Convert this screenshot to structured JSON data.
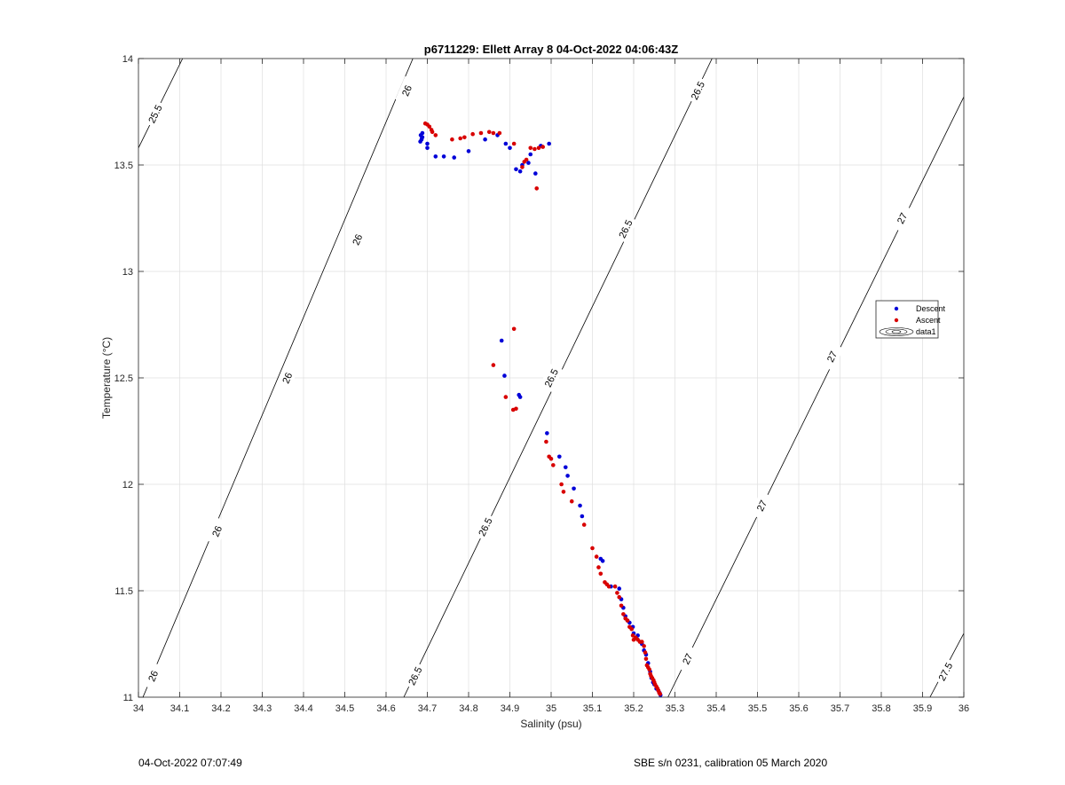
{
  "chart_data": {
    "type": "scatter",
    "title": "p6711229: Ellett Array 8 04-Oct-2022 04:06:43Z",
    "xlabel": "Salinity (psu)",
    "ylabel": "Temperature (°C)",
    "xlim": [
      34,
      36
    ],
    "ylim": [
      11,
      14
    ],
    "xticks": [
      "34",
      "34.1",
      "34.2",
      "34.3",
      "34.4",
      "34.5",
      "34.6",
      "34.7",
      "34.8",
      "34.9",
      "35",
      "35.1",
      "35.2",
      "35.3",
      "35.4",
      "35.5",
      "35.6",
      "35.7",
      "35.8",
      "35.9",
      "36"
    ],
    "yticks": [
      "11",
      "11.5",
      "12",
      "12.5",
      "13",
      "13.5",
      "14"
    ],
    "grid": true,
    "legend_position": "right",
    "legend": [
      "Descent",
      "Ascent",
      "data1"
    ],
    "contours": [
      {
        "level": "25.5",
        "points": [
          [
            34.0,
            13.58
          ],
          [
            34.107,
            14.0
          ]
        ],
        "labels": [
          [
            34.04,
            13.74
          ]
        ]
      },
      {
        "level": "26",
        "points": [
          [
            34.0,
            10.95
          ],
          [
            34.665,
            14.0
          ]
        ],
        "labels": [
          [
            34.035,
            11.1
          ],
          [
            34.19,
            11.78
          ],
          [
            34.36,
            12.5
          ],
          [
            34.53,
            13.15
          ],
          [
            34.65,
            13.85
          ]
        ]
      },
      {
        "level": "26.5",
        "points": [
          [
            34.643,
            11.0
          ],
          [
            35.39,
            14.0
          ]
        ],
        "labels": [
          [
            34.67,
            11.1
          ],
          [
            34.84,
            11.8
          ],
          [
            35.0,
            12.5
          ],
          [
            35.18,
            13.2
          ],
          [
            35.355,
            13.85
          ]
        ]
      },
      {
        "level": "27",
        "points": [
          [
            35.283,
            11.0
          ],
          [
            36.0,
            13.82
          ]
        ],
        "labels": [
          [
            35.33,
            11.18
          ],
          [
            35.51,
            11.9
          ],
          [
            35.68,
            12.6
          ],
          [
            35.85,
            13.25
          ]
        ]
      },
      {
        "level": "27.5",
        "points": [
          [
            35.918,
            11.0
          ],
          [
            36.0,
            11.3
          ]
        ],
        "labels": [
          [
            35.955,
            11.12
          ]
        ]
      }
    ],
    "series": [
      {
        "name": "Descent",
        "color": "#0000d8",
        "points": [
          [
            34.684,
            13.64
          ],
          [
            34.686,
            13.62
          ],
          [
            34.688,
            13.65
          ],
          [
            34.687,
            13.63
          ],
          [
            34.683,
            13.61
          ],
          [
            34.688,
            13.63
          ],
          [
            34.7,
            13.6
          ],
          [
            34.7,
            13.58
          ],
          [
            34.72,
            13.54
          ],
          [
            34.74,
            13.54
          ],
          [
            34.765,
            13.535
          ],
          [
            34.8,
            13.565
          ],
          [
            34.84,
            13.62
          ],
          [
            34.87,
            13.64
          ],
          [
            34.89,
            13.6
          ],
          [
            34.9,
            13.58
          ],
          [
            34.915,
            13.48
          ],
          [
            34.93,
            13.5
          ],
          [
            34.925,
            13.47
          ],
          [
            34.95,
            13.55
          ],
          [
            34.945,
            13.51
          ],
          [
            34.962,
            13.46
          ],
          [
            34.975,
            13.59
          ],
          [
            34.995,
            13.6
          ],
          [
            34.88,
            12.675
          ],
          [
            34.887,
            12.51
          ],
          [
            34.922,
            12.42
          ],
          [
            34.925,
            12.41
          ],
          [
            34.99,
            12.24
          ],
          [
            35.02,
            12.13
          ],
          [
            35.035,
            12.08
          ],
          [
            35.04,
            12.04
          ],
          [
            35.055,
            11.98
          ],
          [
            35.07,
            11.9
          ],
          [
            35.075,
            11.85
          ],
          [
            35.12,
            11.65
          ],
          [
            35.125,
            11.64
          ],
          [
            35.145,
            11.52
          ],
          [
            35.165,
            11.51
          ],
          [
            35.17,
            11.46
          ],
          [
            35.175,
            11.42
          ],
          [
            35.18,
            11.38
          ],
          [
            35.185,
            11.36
          ],
          [
            35.19,
            11.35
          ],
          [
            35.198,
            11.33
          ],
          [
            35.2,
            11.3
          ],
          [
            35.205,
            11.28
          ],
          [
            35.21,
            11.29
          ],
          [
            35.22,
            11.25
          ],
          [
            35.225,
            11.22
          ],
          [
            35.23,
            11.2
          ],
          [
            35.235,
            11.16
          ],
          [
            35.24,
            11.12
          ],
          [
            35.243,
            11.09
          ],
          [
            35.247,
            11.07
          ],
          [
            35.25,
            11.06
          ],
          [
            35.255,
            11.04
          ],
          [
            35.26,
            11.03
          ],
          [
            35.263,
            11.02
          ],
          [
            35.265,
            11.01
          ]
        ]
      },
      {
        "name": "Ascent",
        "color": "#d80000",
        "points": [
          [
            34.695,
            13.695
          ],
          [
            34.7,
            13.69
          ],
          [
            34.705,
            13.68
          ],
          [
            34.71,
            13.665
          ],
          [
            34.712,
            13.655
          ],
          [
            34.72,
            13.64
          ],
          [
            34.76,
            13.62
          ],
          [
            34.78,
            13.625
          ],
          [
            34.79,
            13.63
          ],
          [
            34.81,
            13.645
          ],
          [
            34.83,
            13.65
          ],
          [
            34.85,
            13.655
          ],
          [
            34.86,
            13.65
          ],
          [
            34.875,
            13.65
          ],
          [
            34.91,
            13.6
          ],
          [
            34.93,
            13.49
          ],
          [
            34.935,
            13.515
          ],
          [
            34.94,
            13.525
          ],
          [
            34.95,
            13.58
          ],
          [
            34.96,
            13.575
          ],
          [
            34.97,
            13.58
          ],
          [
            34.965,
            13.39
          ],
          [
            34.98,
            13.585
          ],
          [
            34.86,
            12.56
          ],
          [
            34.89,
            12.41
          ],
          [
            34.91,
            12.73
          ],
          [
            34.908,
            12.35
          ],
          [
            34.915,
            12.355
          ],
          [
            34.988,
            12.2
          ],
          [
            34.995,
            12.13
          ],
          [
            35.0,
            12.12
          ],
          [
            35.005,
            12.09
          ],
          [
            35.025,
            12.0
          ],
          [
            35.03,
            11.965
          ],
          [
            35.05,
            11.92
          ],
          [
            35.08,
            11.81
          ],
          [
            35.1,
            11.7
          ],
          [
            35.11,
            11.66
          ],
          [
            35.115,
            11.61
          ],
          [
            35.12,
            11.58
          ],
          [
            35.13,
            11.54
          ],
          [
            35.135,
            11.53
          ],
          [
            35.14,
            11.52
          ],
          [
            35.155,
            11.52
          ],
          [
            35.16,
            11.49
          ],
          [
            35.165,
            11.47
          ],
          [
            35.17,
            11.43
          ],
          [
            35.175,
            11.39
          ],
          [
            35.18,
            11.37
          ],
          [
            35.185,
            11.36
          ],
          [
            35.19,
            11.33
          ],
          [
            35.195,
            11.32
          ],
          [
            35.198,
            11.29
          ],
          [
            35.2,
            11.27
          ],
          [
            35.205,
            11.28
          ],
          [
            35.21,
            11.27
          ],
          [
            35.215,
            11.26
          ],
          [
            35.22,
            11.26
          ],
          [
            35.225,
            11.24
          ],
          [
            35.228,
            11.21
          ],
          [
            35.23,
            11.18
          ],
          [
            35.232,
            11.15
          ],
          [
            35.235,
            11.14
          ],
          [
            35.238,
            11.13
          ],
          [
            35.24,
            11.11
          ],
          [
            35.242,
            11.1
          ],
          [
            35.245,
            11.09
          ],
          [
            35.248,
            11.08
          ],
          [
            35.25,
            11.07
          ],
          [
            35.252,
            11.06
          ],
          [
            35.255,
            11.05
          ],
          [
            35.258,
            11.04
          ],
          [
            35.26,
            11.03
          ],
          [
            35.262,
            11.02
          ],
          [
            35.264,
            11.015
          ]
        ]
      }
    ]
  },
  "footer": {
    "left": "04-Oct-2022 07:07:49",
    "right": "SBE s/n 0231, calibration 05 March 2020"
  }
}
